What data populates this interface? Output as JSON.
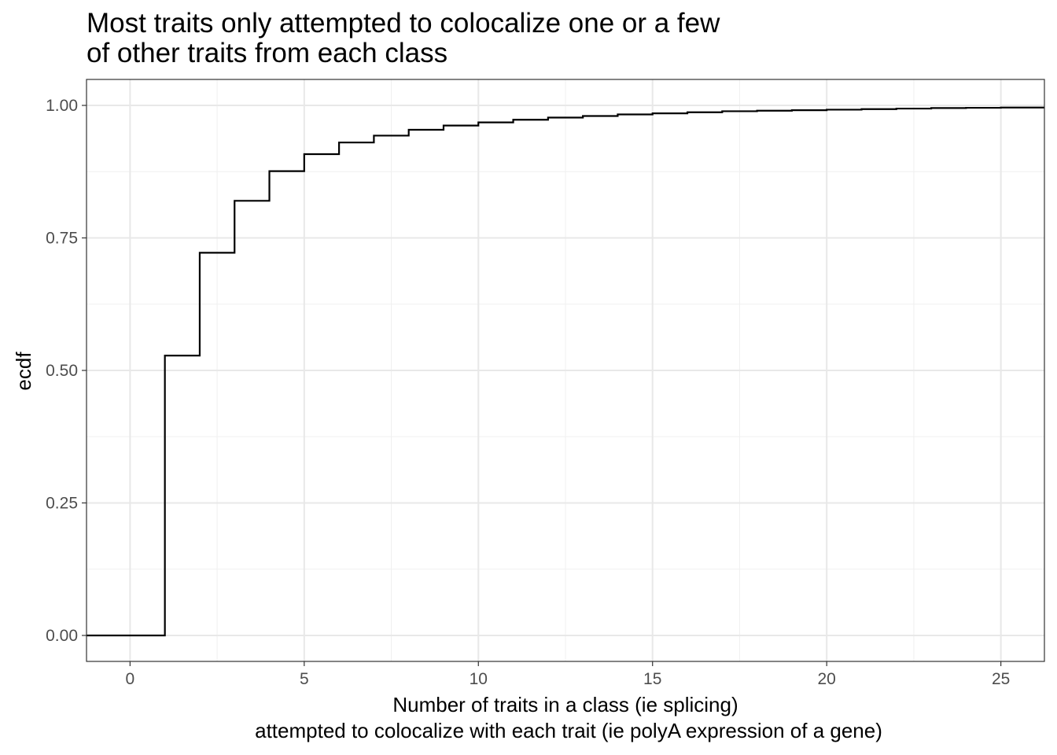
{
  "chart_data": {
    "type": "line",
    "step": true,
    "title_lines": [
      "Most traits only attempted to colocalize one or a few",
      "of other traits from each class"
    ],
    "xlabel_lines": [
      "Number of traits in a class (ie splicing)",
      "attempted to colocalize with each trait (ie polyA expression of a gene)"
    ],
    "ylabel": "ecdf",
    "xlim": [
      -1.25,
      26.25
    ],
    "ylim": [
      -0.049,
      1.049
    ],
    "x_ticks": [
      0,
      5,
      10,
      15,
      20,
      25
    ],
    "x_tick_labels": [
      "0",
      "5",
      "10",
      "15",
      "20",
      "25"
    ],
    "y_ticks": [
      0,
      0.25,
      0.5,
      0.75,
      1.0
    ],
    "y_tick_labels": [
      "0.00",
      "0.25",
      "0.50",
      "0.75",
      "1.00"
    ],
    "grid": true,
    "theme": "bw",
    "line_color": "#000000",
    "series": [
      {
        "x": [
          -1.25,
          1,
          2,
          3,
          4,
          5,
          6,
          7,
          8,
          9,
          10,
          11,
          12,
          13,
          14,
          15,
          16,
          17,
          18,
          19,
          20,
          21,
          22,
          23,
          24,
          25,
          26.25
        ],
        "y": [
          0.0,
          0.528,
          0.722,
          0.82,
          0.876,
          0.908,
          0.93,
          0.943,
          0.954,
          0.962,
          0.968,
          0.973,
          0.977,
          0.98,
          0.983,
          0.985,
          0.987,
          0.989,
          0.99,
          0.991,
          0.992,
          0.993,
          0.994,
          0.995,
          0.9955,
          0.996,
          0.996
        ]
      }
    ]
  }
}
